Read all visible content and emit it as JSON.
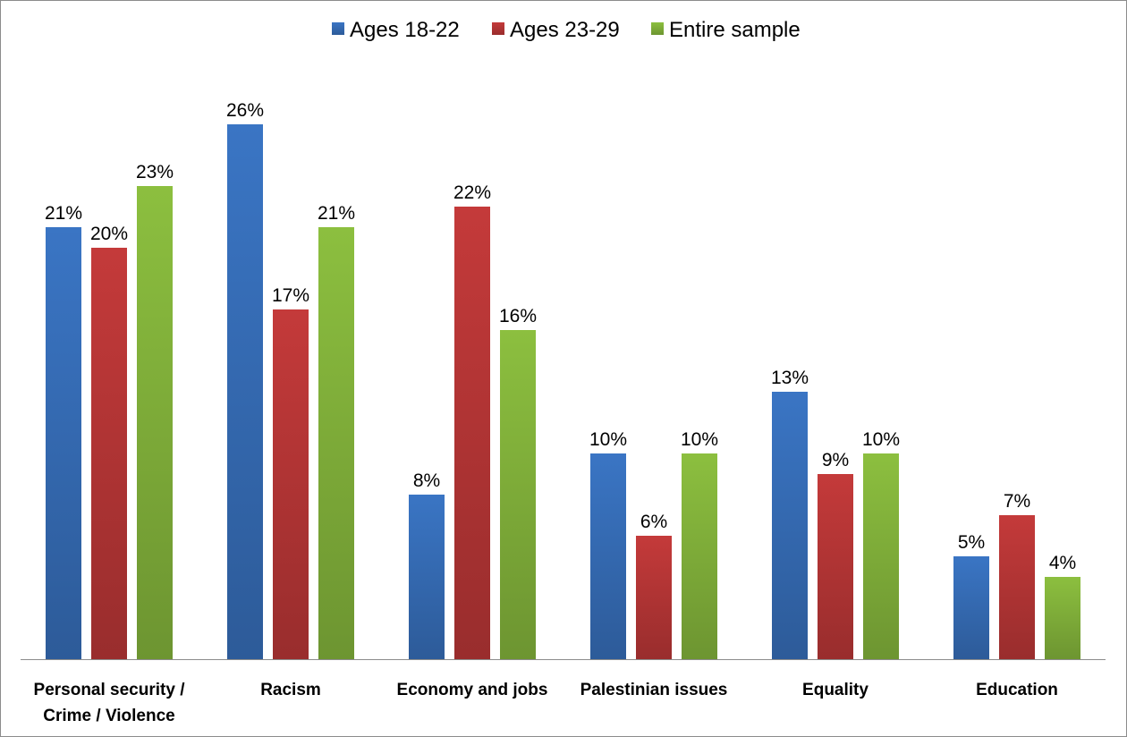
{
  "chart_data": {
    "type": "bar",
    "categories": [
      [
        "Personal security /",
        "Crime / Violence"
      ],
      [
        "Racism"
      ],
      [
        "Economy and jobs"
      ],
      [
        "Palestinian issues"
      ],
      [
        "Equality"
      ],
      [
        "Education"
      ]
    ],
    "series": [
      {
        "name": "Ages 18-22",
        "values": [
          21,
          26,
          8,
          10,
          13,
          5
        ],
        "color": "#3a75c4"
      },
      {
        "name": "Ages 23-29",
        "values": [
          20,
          17,
          22,
          6,
          9,
          7
        ],
        "color": "#c43a3a"
      },
      {
        "name": "Entire sample",
        "values": [
          23,
          21,
          16,
          10,
          10,
          4
        ],
        "color": "#8cbf3f"
      }
    ],
    "value_suffix": "%",
    "ylim": [
      0,
      28
    ],
    "grid": false,
    "legend_position": "top-center",
    "title": "",
    "xlabel": "",
    "ylabel": ""
  }
}
